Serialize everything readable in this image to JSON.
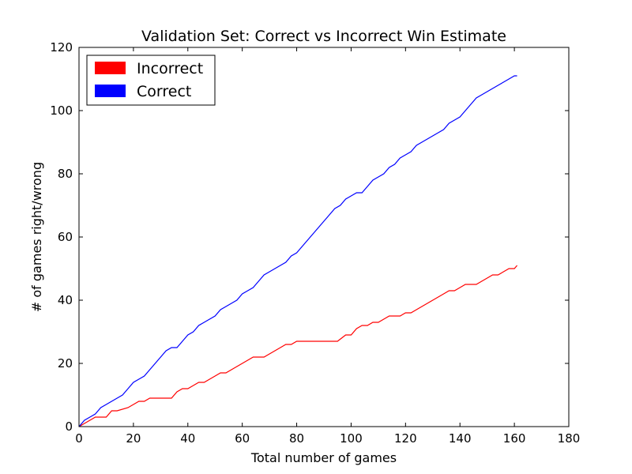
{
  "chart_data": {
    "type": "line",
    "title": "Validation Set: Correct vs Incorrect Win Estimate",
    "xlabel": "Total number of games",
    "ylabel": "# of games right/wrong",
    "xlim": [
      0,
      180
    ],
    "ylim": [
      0,
      120
    ],
    "xticks": [
      0,
      20,
      40,
      60,
      80,
      100,
      120,
      140,
      160,
      180
    ],
    "yticks": [
      0,
      20,
      40,
      60,
      80,
      100,
      120
    ],
    "grid": false,
    "legend_position": "top-left",
    "series": [
      {
        "name": "Incorrect",
        "color": "#ff0000",
        "x": [
          0,
          2,
          4,
          6,
          10,
          12,
          14,
          18,
          20,
          22,
          24,
          26,
          30,
          34,
          36,
          38,
          40,
          42,
          44,
          46,
          48,
          50,
          52,
          54,
          56,
          58,
          60,
          62,
          64,
          66,
          68,
          70,
          72,
          74,
          76,
          78,
          80,
          85,
          90,
          95,
          98,
          100,
          102,
          104,
          106,
          108,
          110,
          112,
          114,
          116,
          118,
          120,
          122,
          124,
          126,
          128,
          130,
          132,
          134,
          136,
          138,
          140,
          142,
          144,
          146,
          148,
          150,
          152,
          154,
          156,
          158,
          160,
          161
        ],
        "values": [
          0,
          1,
          2,
          3,
          3,
          5,
          5,
          6,
          7,
          8,
          8,
          9,
          9,
          9,
          11,
          12,
          12,
          13,
          14,
          14,
          15,
          16,
          17,
          17,
          18,
          19,
          20,
          21,
          22,
          22,
          22,
          23,
          24,
          25,
          26,
          26,
          27,
          27,
          27,
          27,
          29,
          29,
          31,
          32,
          32,
          33,
          33,
          34,
          35,
          35,
          35,
          36,
          36,
          37,
          38,
          39,
          40,
          41,
          42,
          43,
          43,
          44,
          45,
          45,
          45,
          46,
          47,
          48,
          48,
          49,
          50,
          50,
          51
        ]
      },
      {
        "name": "Correct",
        "color": "#0000ff",
        "x": [
          0,
          2,
          4,
          6,
          8,
          10,
          12,
          14,
          16,
          18,
          20,
          22,
          24,
          26,
          28,
          30,
          32,
          34,
          36,
          38,
          40,
          42,
          44,
          46,
          48,
          50,
          52,
          54,
          56,
          58,
          60,
          62,
          64,
          66,
          68,
          70,
          72,
          74,
          76,
          78,
          80,
          82,
          84,
          86,
          88,
          90,
          92,
          94,
          96,
          98,
          100,
          102,
          104,
          106,
          108,
          110,
          112,
          114,
          116,
          118,
          120,
          122,
          124,
          126,
          128,
          130,
          132,
          134,
          136,
          138,
          140,
          142,
          144,
          146,
          148,
          150,
          152,
          154,
          156,
          158,
          160,
          161
        ],
        "values": [
          0,
          2,
          3,
          4,
          6,
          7,
          8,
          9,
          10,
          12,
          14,
          15,
          16,
          18,
          20,
          22,
          24,
          25,
          25,
          27,
          29,
          30,
          32,
          33,
          34,
          35,
          37,
          38,
          39,
          40,
          42,
          43,
          44,
          46,
          48,
          49,
          50,
          51,
          52,
          54,
          55,
          57,
          59,
          61,
          63,
          65,
          67,
          69,
          70,
          72,
          73,
          74,
          74,
          76,
          78,
          79,
          80,
          82,
          83,
          85,
          86,
          87,
          89,
          90,
          91,
          92,
          93,
          94,
          96,
          97,
          98,
          100,
          102,
          104,
          105,
          106,
          107,
          108,
          109,
          110,
          111,
          111
        ]
      }
    ]
  }
}
